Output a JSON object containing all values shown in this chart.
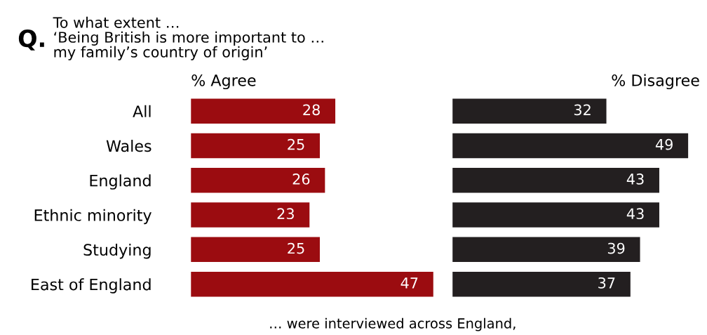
{
  "chart_data": [
    {
      "type": "bar",
      "orientation": "horizontal",
      "title": "Q.",
      "subtitle": "To what extent …\n‘Being British is more important to …\nmy family’s country of origin’",
      "xlabel": "% Agree",
      "categories": [
        "All",
        "Wales",
        "England",
        "Ethnic minority",
        "Studying",
        "East of England"
      ],
      "series": [
        {
          "color": "#9b0c10",
          "values": [
            28,
            25,
            26,
            23,
            25,
            47
          ]
        }
      ],
      "tick_labels": "y",
      "data_labels": true,
      "grid": false,
      "legend": false,
      "annotations": [
        "… were interviewed across England,"
      ]
    },
    {
      "type": "bar",
      "orientation": "horizontal",
      "xlabel": "% Disagree",
      "categories": [
        null,
        null,
        null,
        null,
        null,
        null
      ],
      "series": [
        {
          "color": "#231f20",
          "values": [
            32,
            49,
            43,
            43,
            39,
            37
          ]
        }
      ],
      "tick_labels": false,
      "data_labels": true,
      "grid": false,
      "legend": false
    }
  ]
}
